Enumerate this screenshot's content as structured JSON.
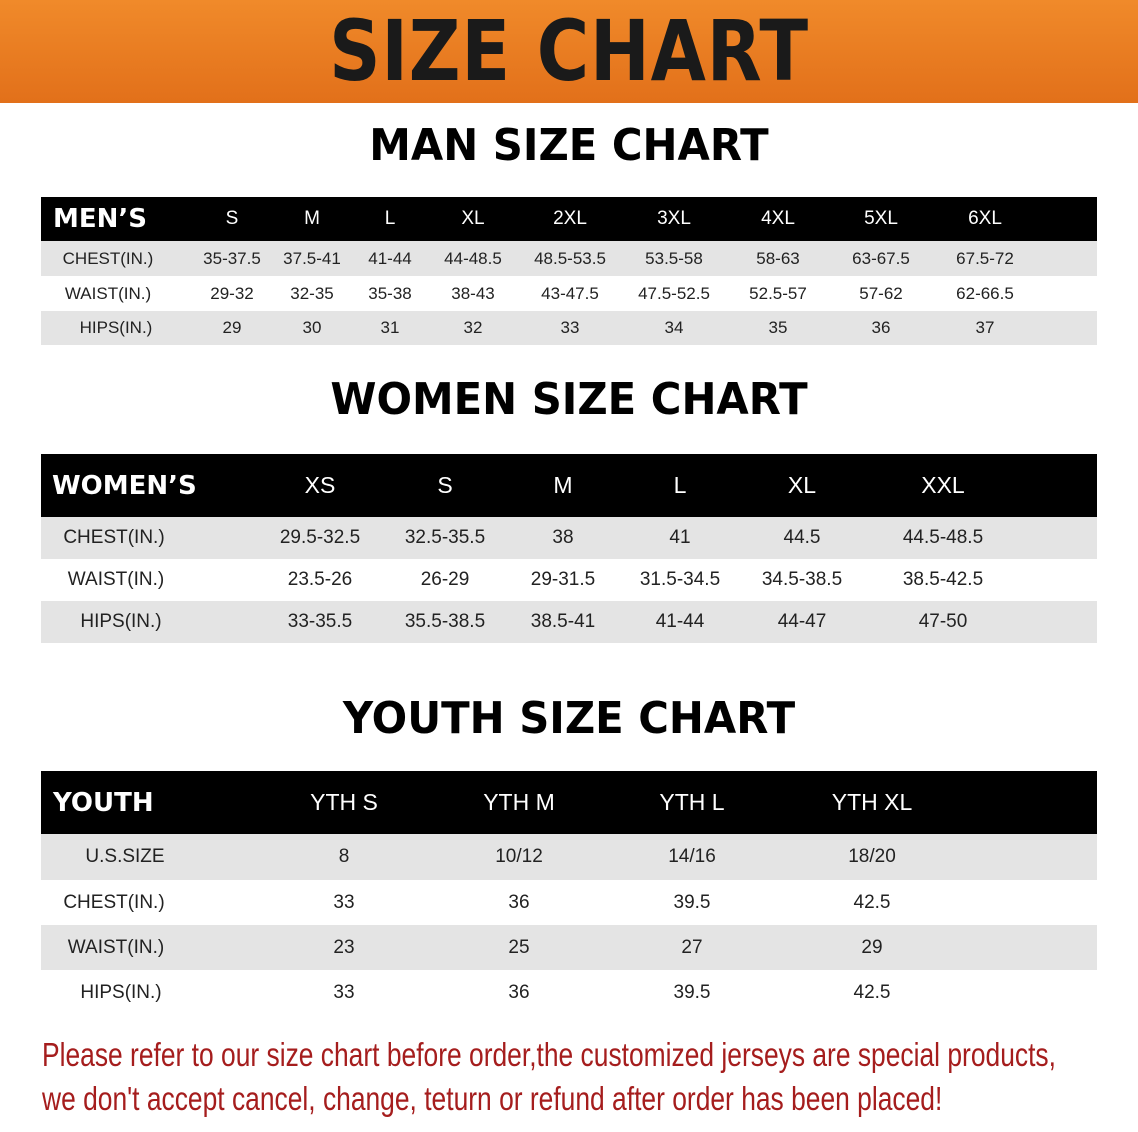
{
  "title": "SIZE CHART",
  "colors": {
    "banner": "#e8781e",
    "header_row": "#000000",
    "alt_row": "#e4e4e4",
    "note": "#a51d1d"
  },
  "men": {
    "section_title": "MAN SIZE CHART",
    "headers": [
      "MEN’S",
      "S",
      "M",
      "L",
      "XL",
      "2XL",
      "3XL",
      "4XL",
      "5XL",
      "6XL"
    ],
    "rows": [
      [
        "CHEST(IN.)",
        "35-37.5",
        "37.5-41",
        "41-44",
        "44-48.5",
        "48.5-53.5",
        "53.5-58",
        "58-63",
        "63-67.5",
        "67.5-72"
      ],
      [
        "WAIST(IN.)",
        "29-32",
        "32-35",
        "35-38",
        "38-43",
        "43-47.5",
        "47.5-52.5",
        "52.5-57",
        "57-62",
        "62-66.5"
      ],
      [
        "HIPS(IN.)",
        "29",
        "30",
        "31",
        "32",
        "33",
        "34",
        "35",
        "36",
        "37"
      ]
    ]
  },
  "women": {
    "section_title": "WOMEN SIZE CHART",
    "headers": [
      "WOMEN’S",
      "XS",
      "S",
      "M",
      "L",
      "XL",
      "XXL"
    ],
    "rows": [
      [
        "CHEST(IN.)",
        "29.5-32.5",
        "32.5-35.5",
        "38",
        "41",
        "44.5",
        "44.5-48.5"
      ],
      [
        "WAIST(IN.)",
        "23.5-26",
        "26-29",
        "29-31.5",
        "31.5-34.5",
        "34.5-38.5",
        "38.5-42.5"
      ],
      [
        "HIPS(IN.)",
        "33-35.5",
        "35.5-38.5",
        "38.5-41",
        "41-44",
        "44-47",
        "47-50"
      ]
    ]
  },
  "youth": {
    "section_title": "YOUTH SIZE CHART",
    "headers": [
      "YOUTH",
      "YTH S",
      "YTH M",
      "YTH L",
      "YTH XL"
    ],
    "rows": [
      [
        "U.S.SIZE",
        "8",
        "10/12",
        "14/16",
        "18/20"
      ],
      [
        "CHEST(IN.)",
        "33",
        "36",
        "39.5",
        "42.5"
      ],
      [
        "WAIST(IN.)",
        "23",
        "25",
        "27",
        "29"
      ],
      [
        "HIPS(IN.)",
        "33",
        "36",
        "39.5",
        "42.5"
      ]
    ]
  },
  "note": {
    "line1": "Please refer to our size chart before order,the customized jerseys are special products,",
    "line2": "we don't accept cancel, change, teturn or refund after order has been placed!"
  }
}
